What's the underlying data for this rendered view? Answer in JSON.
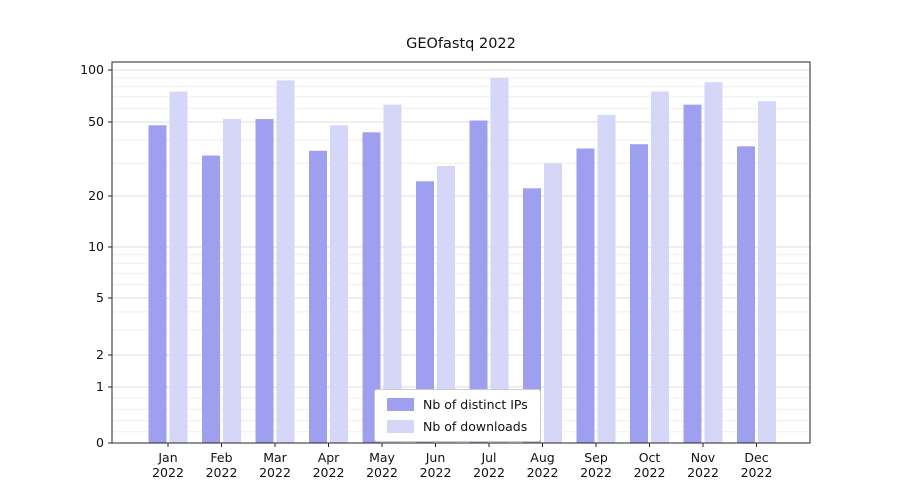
{
  "chart_data": {
    "type": "bar",
    "title": "GEOfastq 2022",
    "xlabel": "",
    "ylabel": "",
    "year": "2022",
    "categories": [
      "Jan",
      "Feb",
      "Mar",
      "Apr",
      "May",
      "Jun",
      "Jul",
      "Aug",
      "Sep",
      "Oct",
      "Nov",
      "Dec"
    ],
    "series": [
      {
        "name": "Nb of distinct IPs",
        "color": "#9f9ff0",
        "values": [
          48,
          33,
          52,
          35,
          44,
          24,
          51,
          22,
          36,
          38,
          63,
          37
        ]
      },
      {
        "name": "Nb of downloads",
        "color": "#d6d6f8",
        "values": [
          75,
          52,
          87,
          48,
          63,
          29,
          90,
          30,
          55,
          75,
          85,
          66
        ]
      }
    ],
    "y_scale": "symlog",
    "ylim": [
      0,
      100
    ],
    "y_ticks": [
      0,
      1,
      2,
      5,
      10,
      20,
      50,
      100
    ],
    "minor_ticks": [
      0.2,
      0.4,
      0.6,
      0.8,
      3,
      4,
      6,
      7,
      8,
      9,
      30,
      40,
      60,
      70,
      80,
      90
    ],
    "grid": true,
    "legend_position": "lower center"
  }
}
